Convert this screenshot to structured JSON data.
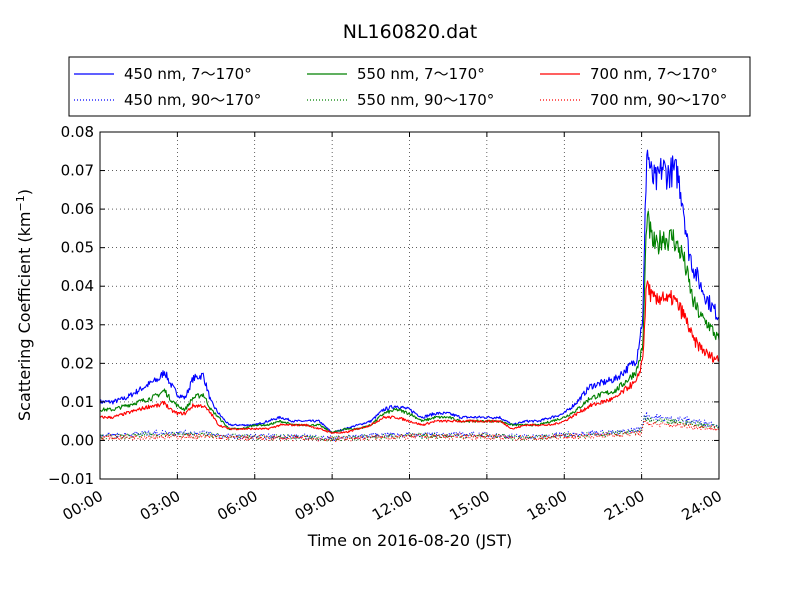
{
  "chart_data": {
    "type": "line",
    "title": "NL160820.dat",
    "xlabel": "Time on 2016-08-20 (JST)",
    "ylabel": "Scattering Coefficient (km",
    "ylabel_sup": "−1",
    "ylabel_close": ")",
    "x_unit": "hours (JST)",
    "xlim": [
      0,
      24
    ],
    "ylim": [
      -0.01,
      0.08
    ],
    "x_ticks": [
      0,
      3,
      6,
      9,
      12,
      15,
      18,
      21,
      24
    ],
    "x_tick_labels": [
      "00:00",
      "03:00",
      "06:00",
      "09:00",
      "12:00",
      "15:00",
      "18:00",
      "21:00",
      "24:00"
    ],
    "y_ticks": [
      -0.01,
      0.0,
      0.01,
      0.02,
      0.03,
      0.04,
      0.05,
      0.06,
      0.07,
      0.08
    ],
    "y_tick_labels": [
      "−0.01",
      "0.00",
      "0.01",
      "0.02",
      "0.03",
      "0.04",
      "0.05",
      "0.06",
      "0.07",
      "0.08"
    ],
    "grid": true,
    "legend_position": "top (above plot, 3 columns)",
    "series": [
      {
        "name": "450 nm, 7～170°",
        "color": "#0000ff",
        "style": "solid",
        "x": [
          0,
          0.5,
          1,
          1.5,
          2,
          2.3,
          2.5,
          2.7,
          3,
          3.3,
          3.6,
          4,
          4.3,
          4.6,
          5,
          5.5,
          6,
          6.5,
          7,
          7.5,
          8,
          8.5,
          9,
          9.5,
          10,
          10.5,
          11,
          11.5,
          12,
          12.5,
          13,
          13.5,
          14,
          14.5,
          15,
          15.5,
          16,
          16.5,
          17,
          17.5,
          18,
          18.5,
          19,
          19.5,
          20,
          20.5,
          20.8,
          21.0,
          21.05,
          21.2,
          21.4,
          21.6,
          21.8,
          22,
          22.2,
          22.4,
          22.6,
          22.8,
          23,
          23.3,
          23.6,
          24
        ],
        "y": [
          0.01,
          0.01,
          0.011,
          0.013,
          0.015,
          0.016,
          0.018,
          0.015,
          0.012,
          0.011,
          0.016,
          0.017,
          0.01,
          0.007,
          0.004,
          0.004,
          0.004,
          0.005,
          0.006,
          0.005,
          0.005,
          0.005,
          0.002,
          0.003,
          0.004,
          0.005,
          0.008,
          0.009,
          0.008,
          0.006,
          0.007,
          0.007,
          0.006,
          0.006,
          0.006,
          0.006,
          0.004,
          0.005,
          0.005,
          0.006,
          0.007,
          0.01,
          0.014,
          0.015,
          0.016,
          0.019,
          0.021,
          0.03,
          0.032,
          0.076,
          0.068,
          0.067,
          0.071,
          0.069,
          0.07,
          0.069,
          0.062,
          0.05,
          0.045,
          0.04,
          0.036,
          0.032
        ]
      },
      {
        "name": "550 nm, 7～170°",
        "color": "#008000",
        "style": "solid",
        "x": [
          0,
          0.5,
          1,
          1.5,
          2,
          2.3,
          2.5,
          2.7,
          3,
          3.3,
          3.6,
          4,
          4.3,
          4.6,
          5,
          5.5,
          6,
          6.5,
          7,
          7.5,
          8,
          8.5,
          9,
          9.5,
          10,
          10.5,
          11,
          11.5,
          12,
          12.5,
          13,
          13.5,
          14,
          14.5,
          15,
          15.5,
          16,
          16.5,
          17,
          17.5,
          18,
          18.5,
          19,
          19.5,
          20,
          20.5,
          20.8,
          21.0,
          21.05,
          21.2,
          21.4,
          21.6,
          21.8,
          22,
          22.2,
          22.4,
          22.6,
          22.8,
          23,
          23.3,
          23.6,
          24
        ],
        "y": [
          0.008,
          0.008,
          0.009,
          0.01,
          0.011,
          0.012,
          0.013,
          0.011,
          0.009,
          0.008,
          0.011,
          0.012,
          0.008,
          0.006,
          0.003,
          0.003,
          0.004,
          0.004,
          0.005,
          0.004,
          0.004,
          0.004,
          0.002,
          0.003,
          0.003,
          0.004,
          0.007,
          0.008,
          0.007,
          0.005,
          0.006,
          0.006,
          0.005,
          0.005,
          0.005,
          0.005,
          0.004,
          0.004,
          0.004,
          0.005,
          0.006,
          0.008,
          0.011,
          0.012,
          0.013,
          0.016,
          0.018,
          0.023,
          0.025,
          0.058,
          0.052,
          0.05,
          0.053,
          0.052,
          0.053,
          0.05,
          0.048,
          0.042,
          0.036,
          0.032,
          0.03,
          0.026
        ]
      },
      {
        "name": "700 nm, 7～170°",
        "color": "#ff0000",
        "style": "solid",
        "x": [
          0,
          0.5,
          1,
          1.5,
          2,
          2.3,
          2.5,
          2.7,
          3,
          3.3,
          3.6,
          4,
          4.3,
          4.6,
          5,
          5.5,
          6,
          6.5,
          7,
          7.5,
          8,
          8.5,
          9,
          9.5,
          10,
          10.5,
          11,
          11.5,
          12,
          12.5,
          13,
          13.5,
          14,
          14.5,
          15,
          15.5,
          16,
          16.5,
          17,
          17.5,
          18,
          18.5,
          19,
          19.5,
          20,
          20.5,
          20.8,
          21.0,
          21.05,
          21.2,
          21.4,
          21.6,
          21.8,
          22,
          22.2,
          22.4,
          22.6,
          22.8,
          23,
          23.3,
          23.6,
          24
        ],
        "y": [
          0.006,
          0.006,
          0.007,
          0.008,
          0.009,
          0.009,
          0.01,
          0.008,
          0.007,
          0.007,
          0.009,
          0.009,
          0.007,
          0.004,
          0.003,
          0.003,
          0.003,
          0.003,
          0.004,
          0.004,
          0.004,
          0.003,
          0.002,
          0.002,
          0.003,
          0.004,
          0.006,
          0.006,
          0.005,
          0.004,
          0.005,
          0.005,
          0.005,
          0.005,
          0.005,
          0.005,
          0.003,
          0.004,
          0.004,
          0.004,
          0.005,
          0.007,
          0.009,
          0.01,
          0.011,
          0.014,
          0.015,
          0.02,
          0.022,
          0.041,
          0.037,
          0.036,
          0.038,
          0.036,
          0.037,
          0.035,
          0.033,
          0.03,
          0.026,
          0.024,
          0.022,
          0.021
        ]
      },
      {
        "name": "450 nm, 90～170°",
        "color": "#0000ff",
        "style": "dotted",
        "x": [
          0,
          1,
          2,
          3,
          4,
          5,
          6,
          7,
          8,
          9,
          10,
          11,
          12,
          13,
          14,
          15,
          16,
          17,
          18,
          19,
          20,
          21,
          21.1,
          21.5,
          22,
          22.5,
          23,
          23.5,
          24
        ],
        "y": [
          0.0015,
          0.0015,
          0.002,
          0.002,
          0.002,
          0.001,
          0.001,
          0.001,
          0.001,
          0.0005,
          0.001,
          0.0015,
          0.0015,
          0.0015,
          0.0015,
          0.0015,
          0.001,
          0.001,
          0.0015,
          0.002,
          0.002,
          0.003,
          0.0065,
          0.006,
          0.0055,
          0.0055,
          0.005,
          0.0045,
          0.004
        ]
      },
      {
        "name": "550 nm, 90～170°",
        "color": "#008000",
        "style": "dotted",
        "x": [
          0,
          1,
          2,
          3,
          4,
          5,
          6,
          7,
          8,
          9,
          10,
          11,
          12,
          13,
          14,
          15,
          16,
          17,
          18,
          19,
          20,
          21,
          21.1,
          21.5,
          22,
          22.5,
          23,
          23.5,
          24
        ],
        "y": [
          0.001,
          0.001,
          0.0015,
          0.0015,
          0.0015,
          0.001,
          0.0008,
          0.0008,
          0.0008,
          0.0004,
          0.0008,
          0.001,
          0.0012,
          0.0012,
          0.0012,
          0.0012,
          0.0008,
          0.0008,
          0.0012,
          0.0015,
          0.0017,
          0.0025,
          0.0055,
          0.005,
          0.0048,
          0.0047,
          0.0043,
          0.004,
          0.0035
        ]
      },
      {
        "name": "700 nm, 90～170°",
        "color": "#ff0000",
        "style": "dotted",
        "x": [
          0,
          1,
          2,
          3,
          4,
          5,
          6,
          7,
          8,
          9,
          10,
          11,
          12,
          13,
          14,
          15,
          16,
          17,
          18,
          19,
          20,
          21,
          21.1,
          21.5,
          22,
          22.5,
          23,
          23.5,
          24
        ],
        "y": [
          0.0008,
          0.0008,
          0.001,
          0.001,
          0.001,
          0.0007,
          0.0006,
          0.0006,
          0.0006,
          0.0003,
          0.0006,
          0.0008,
          0.001,
          0.001,
          0.001,
          0.001,
          0.0006,
          0.0006,
          0.001,
          0.0012,
          0.0014,
          0.002,
          0.0045,
          0.0042,
          0.004,
          0.0039,
          0.0036,
          0.0033,
          0.003
        ]
      }
    ]
  },
  "legend_order": [
    0,
    1,
    2,
    3,
    4,
    5
  ]
}
